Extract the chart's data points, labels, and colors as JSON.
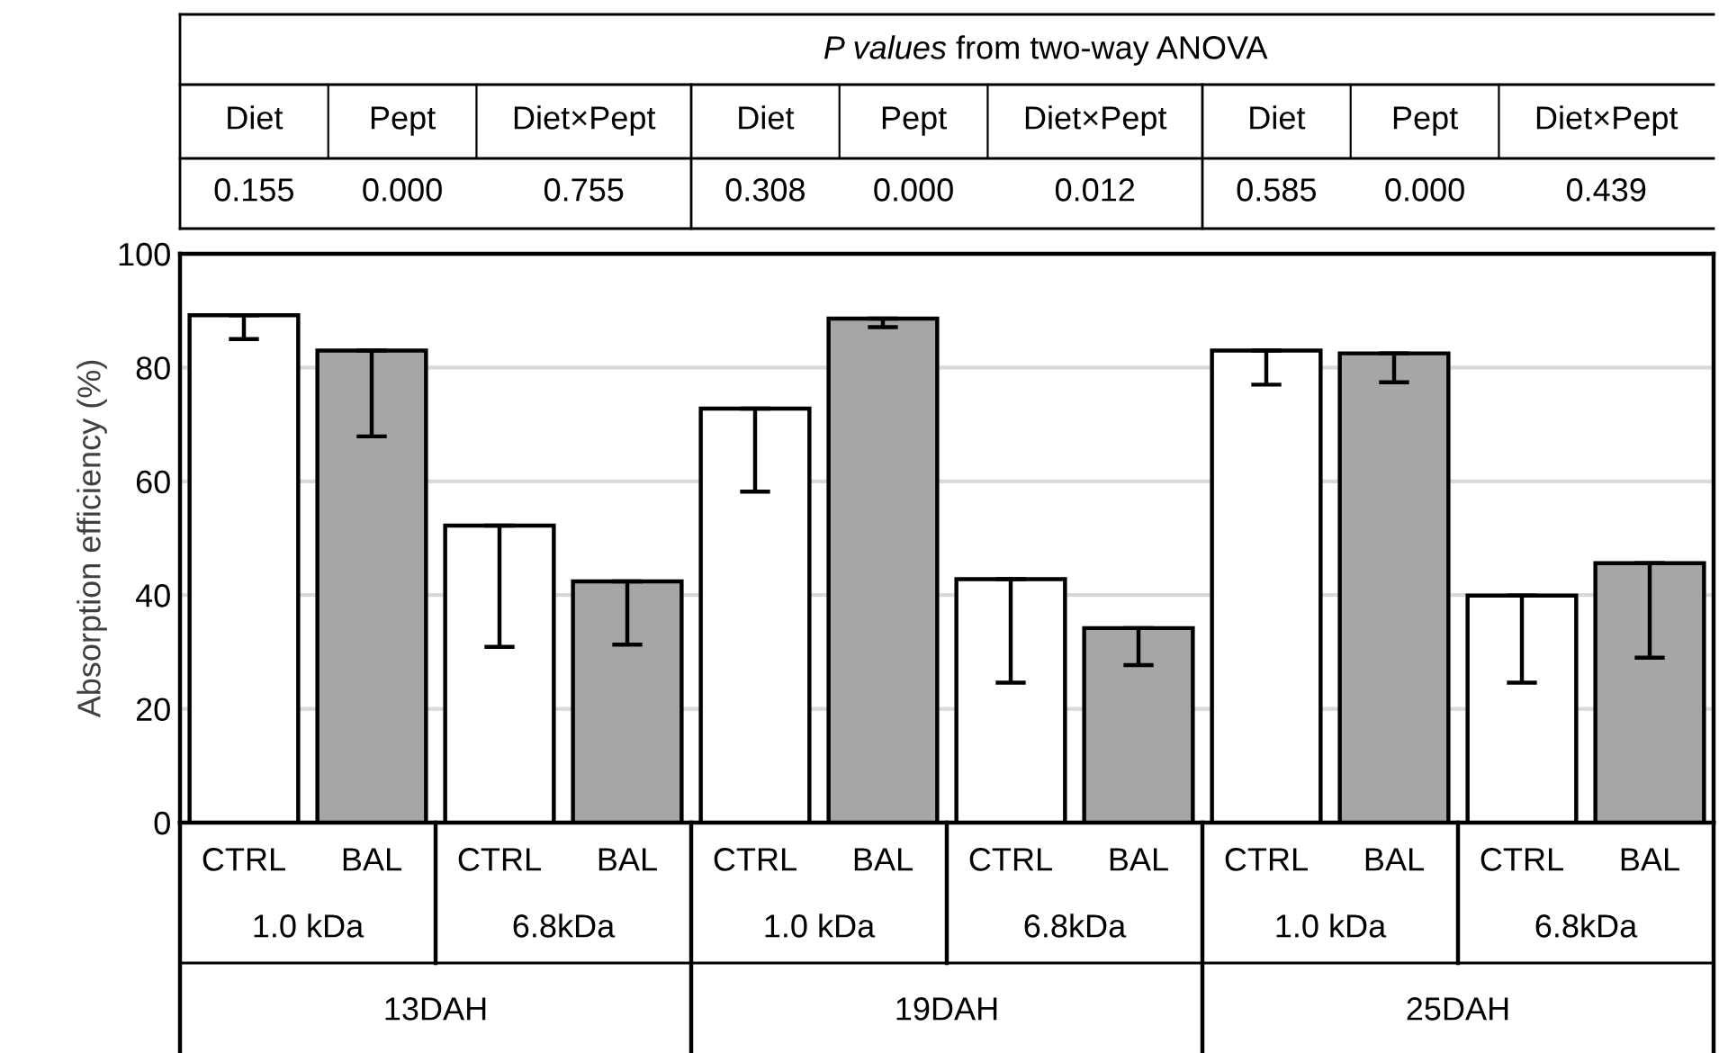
{
  "chart_data": {
    "type": "bar",
    "ylabel": "Absorption efficiency (%)",
    "categories": [
      "CTRL",
      "BAL",
      "CTRL",
      "BAL",
      "CTRL",
      "BAL",
      "CTRL",
      "BAL",
      "CTRL",
      "BAL",
      "CTRL",
      "BAL"
    ],
    "values": [
      89.2,
      83.0,
      52.2,
      42.4,
      72.8,
      88.6,
      42.8,
      34.2,
      83.0,
      82.5,
      39.9,
      45.6
    ],
    "colors": [
      "#ffffff",
      "#a6a6a6",
      "#ffffff",
      "#a6a6a6",
      "#ffffff",
      "#a6a6a6",
      "#ffffff",
      "#a6a6a6",
      "#ffffff",
      "#a6a6a6",
      "#ffffff",
      "#a6a6a6"
    ],
    "errors": [
      [
        85.0,
        89.2
      ],
      [
        67.9,
        83.0
      ],
      [
        30.9,
        52.2
      ],
      [
        31.3,
        42.4
      ],
      [
        58.2,
        72.8
      ],
      [
        87.1,
        88.6
      ],
      [
        24.6,
        42.8
      ],
      [
        27.7,
        34.2
      ],
      [
        77.0,
        83.0
      ],
      [
        77.4,
        82.5
      ],
      [
        24.6,
        39.9
      ],
      [
        29.0,
        45.6
      ]
    ],
    "ylim": [
      0,
      100
    ],
    "yticks": [
      0,
      20,
      40,
      60,
      80,
      100
    ],
    "grid": "y",
    "annotations": [
      "P values from two-way ANOVA",
      "Diet",
      "Pept",
      "Diet×Pept",
      "Diet",
      "Pept",
      "Diet×Pept",
      "Diet",
      "Pept",
      "Diet×Pept",
      "0.155",
      "0.000",
      "0.755",
      "0.308",
      "0.000",
      "0.012",
      "0.585",
      "0.000",
      "0.439",
      "1.0 kDa",
      "6.8kDa",
      "1.0 kDa",
      "6.8kDa",
      "1.0 kDa",
      "6.8kDa",
      "13DAH",
      "19DAH",
      "25DAH"
    ]
  }
}
